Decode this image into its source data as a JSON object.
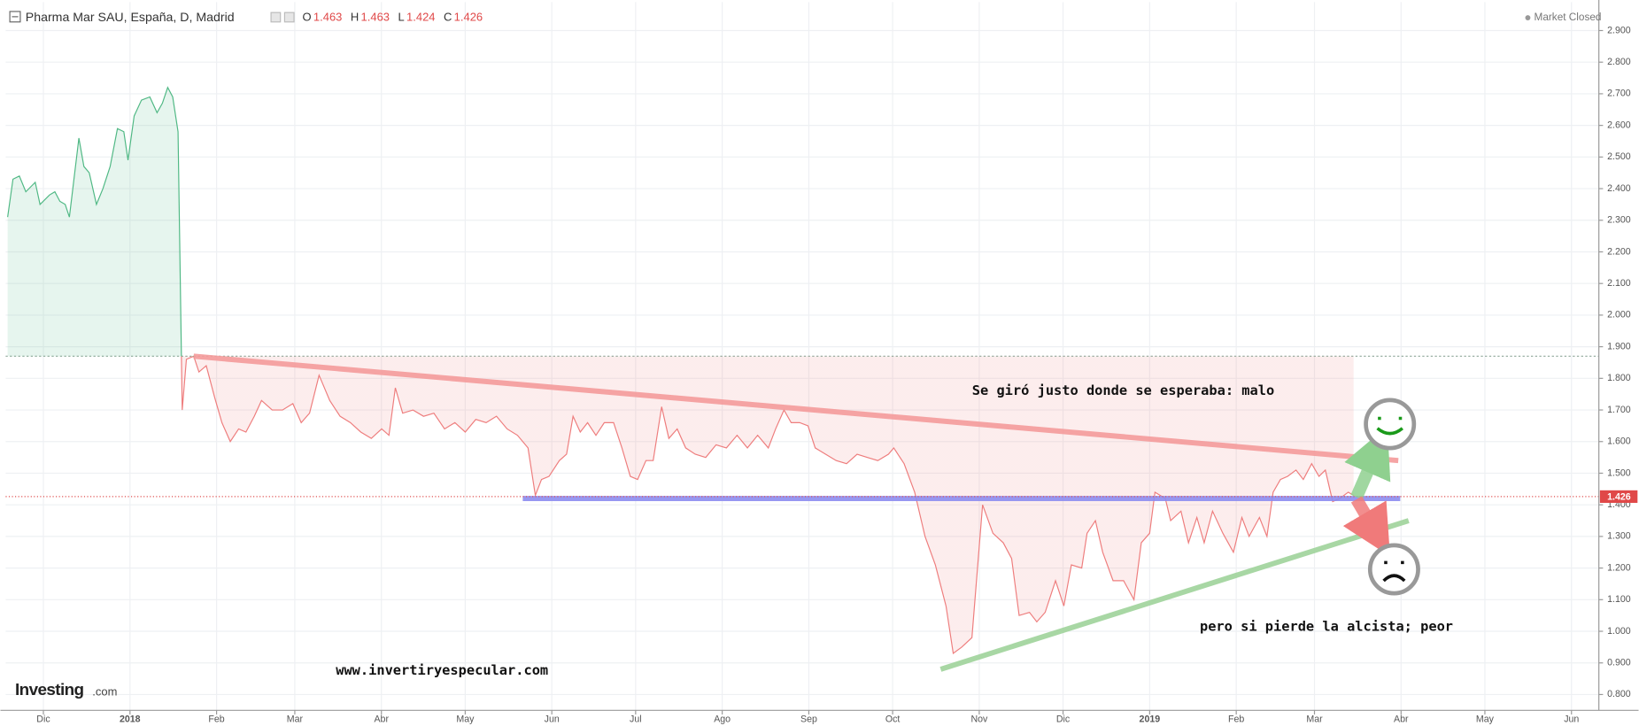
{
  "chart_data": {
    "type": "line",
    "title": "Pharma Mar SAU, España, D, Madrid",
    "ohlc": [
      {
        "label": "O",
        "value": 1.463
      },
      {
        "label": "H",
        "value": 1.463
      },
      {
        "label": "L",
        "value": 1.424
      },
      {
        "label": "C",
        "value": 1.426
      }
    ],
    "status": "Market Closed",
    "annotations": [
      "Se giró justo donde se esperaba: malo",
      "pero si pierde la alcista; peor",
      "www.invertiryespecular.com"
    ],
    "logo": [
      "Investing",
      ".com"
    ],
    "xlim": [
      -44.5,
      525.8
    ],
    "ylim": [
      0.75,
      2.99
    ],
    "xticks": [
      {
        "value": -31,
        "label": "Dic"
      },
      {
        "value": 0,
        "label": "2018"
      },
      {
        "value": 31,
        "label": "Feb"
      },
      {
        "value": 59,
        "label": "Mar"
      },
      {
        "value": 90,
        "label": "Abr"
      },
      {
        "value": 120,
        "label": "May"
      },
      {
        "value": 151,
        "label": "Jun"
      },
      {
        "value": 181,
        "label": "Jul"
      },
      {
        "value": 212,
        "label": "Ago"
      },
      {
        "value": 243,
        "label": "Sep"
      },
      {
        "value": 273,
        "label": "Oct"
      },
      {
        "value": 304,
        "label": "Nov"
      },
      {
        "value": 334,
        "label": "Dic"
      },
      {
        "value": 365,
        "label": "2019"
      },
      {
        "value": 396,
        "label": "Feb"
      },
      {
        "value": 424,
        "label": "Mar"
      },
      {
        "value": 455,
        "label": "Abr"
      },
      {
        "value": 485,
        "label": "May"
      },
      {
        "value": 516,
        "label": "Jun"
      }
    ],
    "yticks": [
      {
        "value": 0.8,
        "label": "0.800"
      },
      {
        "value": 0.9,
        "label": "0.900"
      },
      {
        "value": 1.0,
        "label": "1.000"
      },
      {
        "value": 1.1,
        "label": "1.100"
      },
      {
        "value": 1.2,
        "label": "1.200"
      },
      {
        "value": 1.3,
        "label": "1.300"
      },
      {
        "value": 1.4,
        "label": "1.400"
      },
      {
        "value": 1.5,
        "label": "1.500"
      },
      {
        "value": 1.6,
        "label": "1.600"
      },
      {
        "value": 1.7,
        "label": "1.700"
      },
      {
        "value": 1.8,
        "label": "1.800"
      },
      {
        "value": 1.9,
        "label": "1.900"
      },
      {
        "value": 2.0,
        "label": "2.000"
      },
      {
        "value": 2.1,
        "label": "2.100"
      },
      {
        "value": 2.2,
        "label": "2.200"
      },
      {
        "value": 2.3,
        "label": "2.300"
      },
      {
        "value": 2.4,
        "label": "2.400"
      },
      {
        "value": 2.5,
        "label": "2.500"
      },
      {
        "value": 2.6,
        "label": "2.600"
      },
      {
        "value": 2.7,
        "label": "2.700"
      },
      {
        "value": 2.8,
        "label": "2.800"
      },
      {
        "value": 2.9,
        "label": "2.900"
      }
    ],
    "grid": true,
    "baseline": 1.87,
    "last_value": {
      "value": 1.426,
      "label": "1.426"
    },
    "up_color": "#4fb884",
    "down_color": "#ee7d7d",
    "series": [
      {
        "x": [
          -43.8,
          -41.9,
          -39.6,
          -37.3,
          -33.9,
          -32.2,
          -28.8,
          -26.9,
          -25.1,
          -23.2,
          -21.7,
          -18.3,
          -16.5,
          -14.6,
          -12.0,
          -9.7,
          -7.1,
          -4.5,
          -2.2,
          -0.7,
          1.5,
          4.1,
          7.1,
          9.7,
          11.6,
          13.5,
          15.3,
          17.2,
          18.7,
          20.2,
          22.8,
          24.7,
          27.3,
          30.3,
          32.9,
          35.9,
          38.9,
          41.5,
          44.5,
          47.1,
          50.9,
          54.6,
          58.3,
          61.3,
          64.3,
          67.7,
          71.5,
          75.2,
          78.9,
          82.6,
          86.4,
          90.1,
          92.7,
          95.0,
          97.6,
          101.3,
          105.1,
          108.8,
          112.6,
          116.3,
          120.0,
          123.8,
          127.5,
          131.2,
          135.0,
          138.7,
          142.5,
          145.1,
          147.3,
          150.0,
          153.7,
          156.3,
          158.6,
          161.2,
          163.8,
          166.8,
          169.8,
          173.1,
          176.1,
          179.1,
          181.7,
          184.7,
          187.3,
          190.3,
          192.9,
          195.9,
          198.9,
          202.3,
          206.1,
          209.8,
          213.5,
          217.3,
          221.0,
          224.7,
          228.5,
          231.1,
          234.1,
          236.7,
          239.7,
          242.7,
          245.3,
          249.0,
          252.8,
          256.5,
          260.3,
          264.0,
          267.7,
          271.5,
          273.4,
          277.1,
          280.9,
          284.6,
          288.3,
          292.1,
          294.7,
          297.7,
          301.4,
          305.2,
          308.9,
          312.6,
          315.6,
          318.3,
          322.0,
          324.6,
          327.6,
          331.3,
          334.3,
          337.0,
          340.7,
          342.6,
          345.6,
          348.2,
          351.9,
          355.7,
          359.4,
          362.0,
          365.0,
          366.9,
          370.6,
          372.5,
          376.2,
          378.9,
          381.9,
          384.5,
          387.5,
          391.2,
          395.0,
          398.0,
          400.6,
          404.3,
          407.0,
          409.2,
          411.8,
          414.4,
          417.4,
          420.0,
          423.0,
          425.6,
          427.9,
          430.5,
          433.1,
          436.1,
          438.0
        ],
        "values": [
          2.31,
          2.43,
          2.44,
          2.39,
          2.42,
          2.35,
          2.38,
          2.39,
          2.36,
          2.35,
          2.31,
          2.56,
          2.47,
          2.45,
          2.35,
          2.4,
          2.47,
          2.59,
          2.58,
          2.49,
          2.63,
          2.68,
          2.69,
          2.64,
          2.67,
          2.72,
          2.69,
          2.58,
          1.7,
          1.86,
          1.87,
          1.82,
          1.84,
          1.74,
          1.66,
          1.6,
          1.64,
          1.63,
          1.68,
          1.73,
          1.7,
          1.7,
          1.72,
          1.66,
          1.69,
          1.81,
          1.73,
          1.68,
          1.66,
          1.63,
          1.61,
          1.64,
          1.62,
          1.77,
          1.69,
          1.7,
          1.68,
          1.69,
          1.64,
          1.66,
          1.63,
          1.67,
          1.66,
          1.68,
          1.64,
          1.62,
          1.58,
          1.43,
          1.48,
          1.49,
          1.54,
          1.56,
          1.68,
          1.63,
          1.66,
          1.62,
          1.66,
          1.66,
          1.58,
          1.49,
          1.48,
          1.54,
          1.54,
          1.71,
          1.61,
          1.64,
          1.58,
          1.56,
          1.55,
          1.59,
          1.58,
          1.62,
          1.58,
          1.62,
          1.58,
          1.64,
          1.7,
          1.66,
          1.66,
          1.65,
          1.58,
          1.56,
          1.54,
          1.53,
          1.56,
          1.55,
          1.54,
          1.56,
          1.58,
          1.53,
          1.44,
          1.3,
          1.21,
          1.08,
          0.93,
          0.95,
          0.98,
          1.4,
          1.31,
          1.28,
          1.23,
          1.05,
          1.06,
          1.03,
          1.06,
          1.16,
          1.08,
          1.21,
          1.2,
          1.31,
          1.35,
          1.25,
          1.16,
          1.16,
          1.1,
          1.28,
          1.31,
          1.44,
          1.42,
          1.35,
          1.38,
          1.28,
          1.36,
          1.28,
          1.38,
          1.31,
          1.25,
          1.36,
          1.3,
          1.36,
          1.3,
          1.44,
          1.48,
          1.49,
          1.51,
          1.48,
          1.53,
          1.49,
          1.51,
          1.41,
          1.42,
          1.44,
          1.43
        ]
      }
    ],
    "trendlines": [
      {
        "color": "#f49a9a",
        "x": [
          22.8,
          454.0
        ],
        "y": [
          1.87,
          1.54
        ]
      },
      {
        "color": "#8c8cf0",
        "x": [
          140.6,
          454.7
        ],
        "y": [
          1.42,
          1.42
        ]
      },
      {
        "color": "#9fd39a",
        "x": [
          290.2,
          457.7
        ],
        "y": [
          0.88,
          1.35
        ]
      }
    ]
  }
}
